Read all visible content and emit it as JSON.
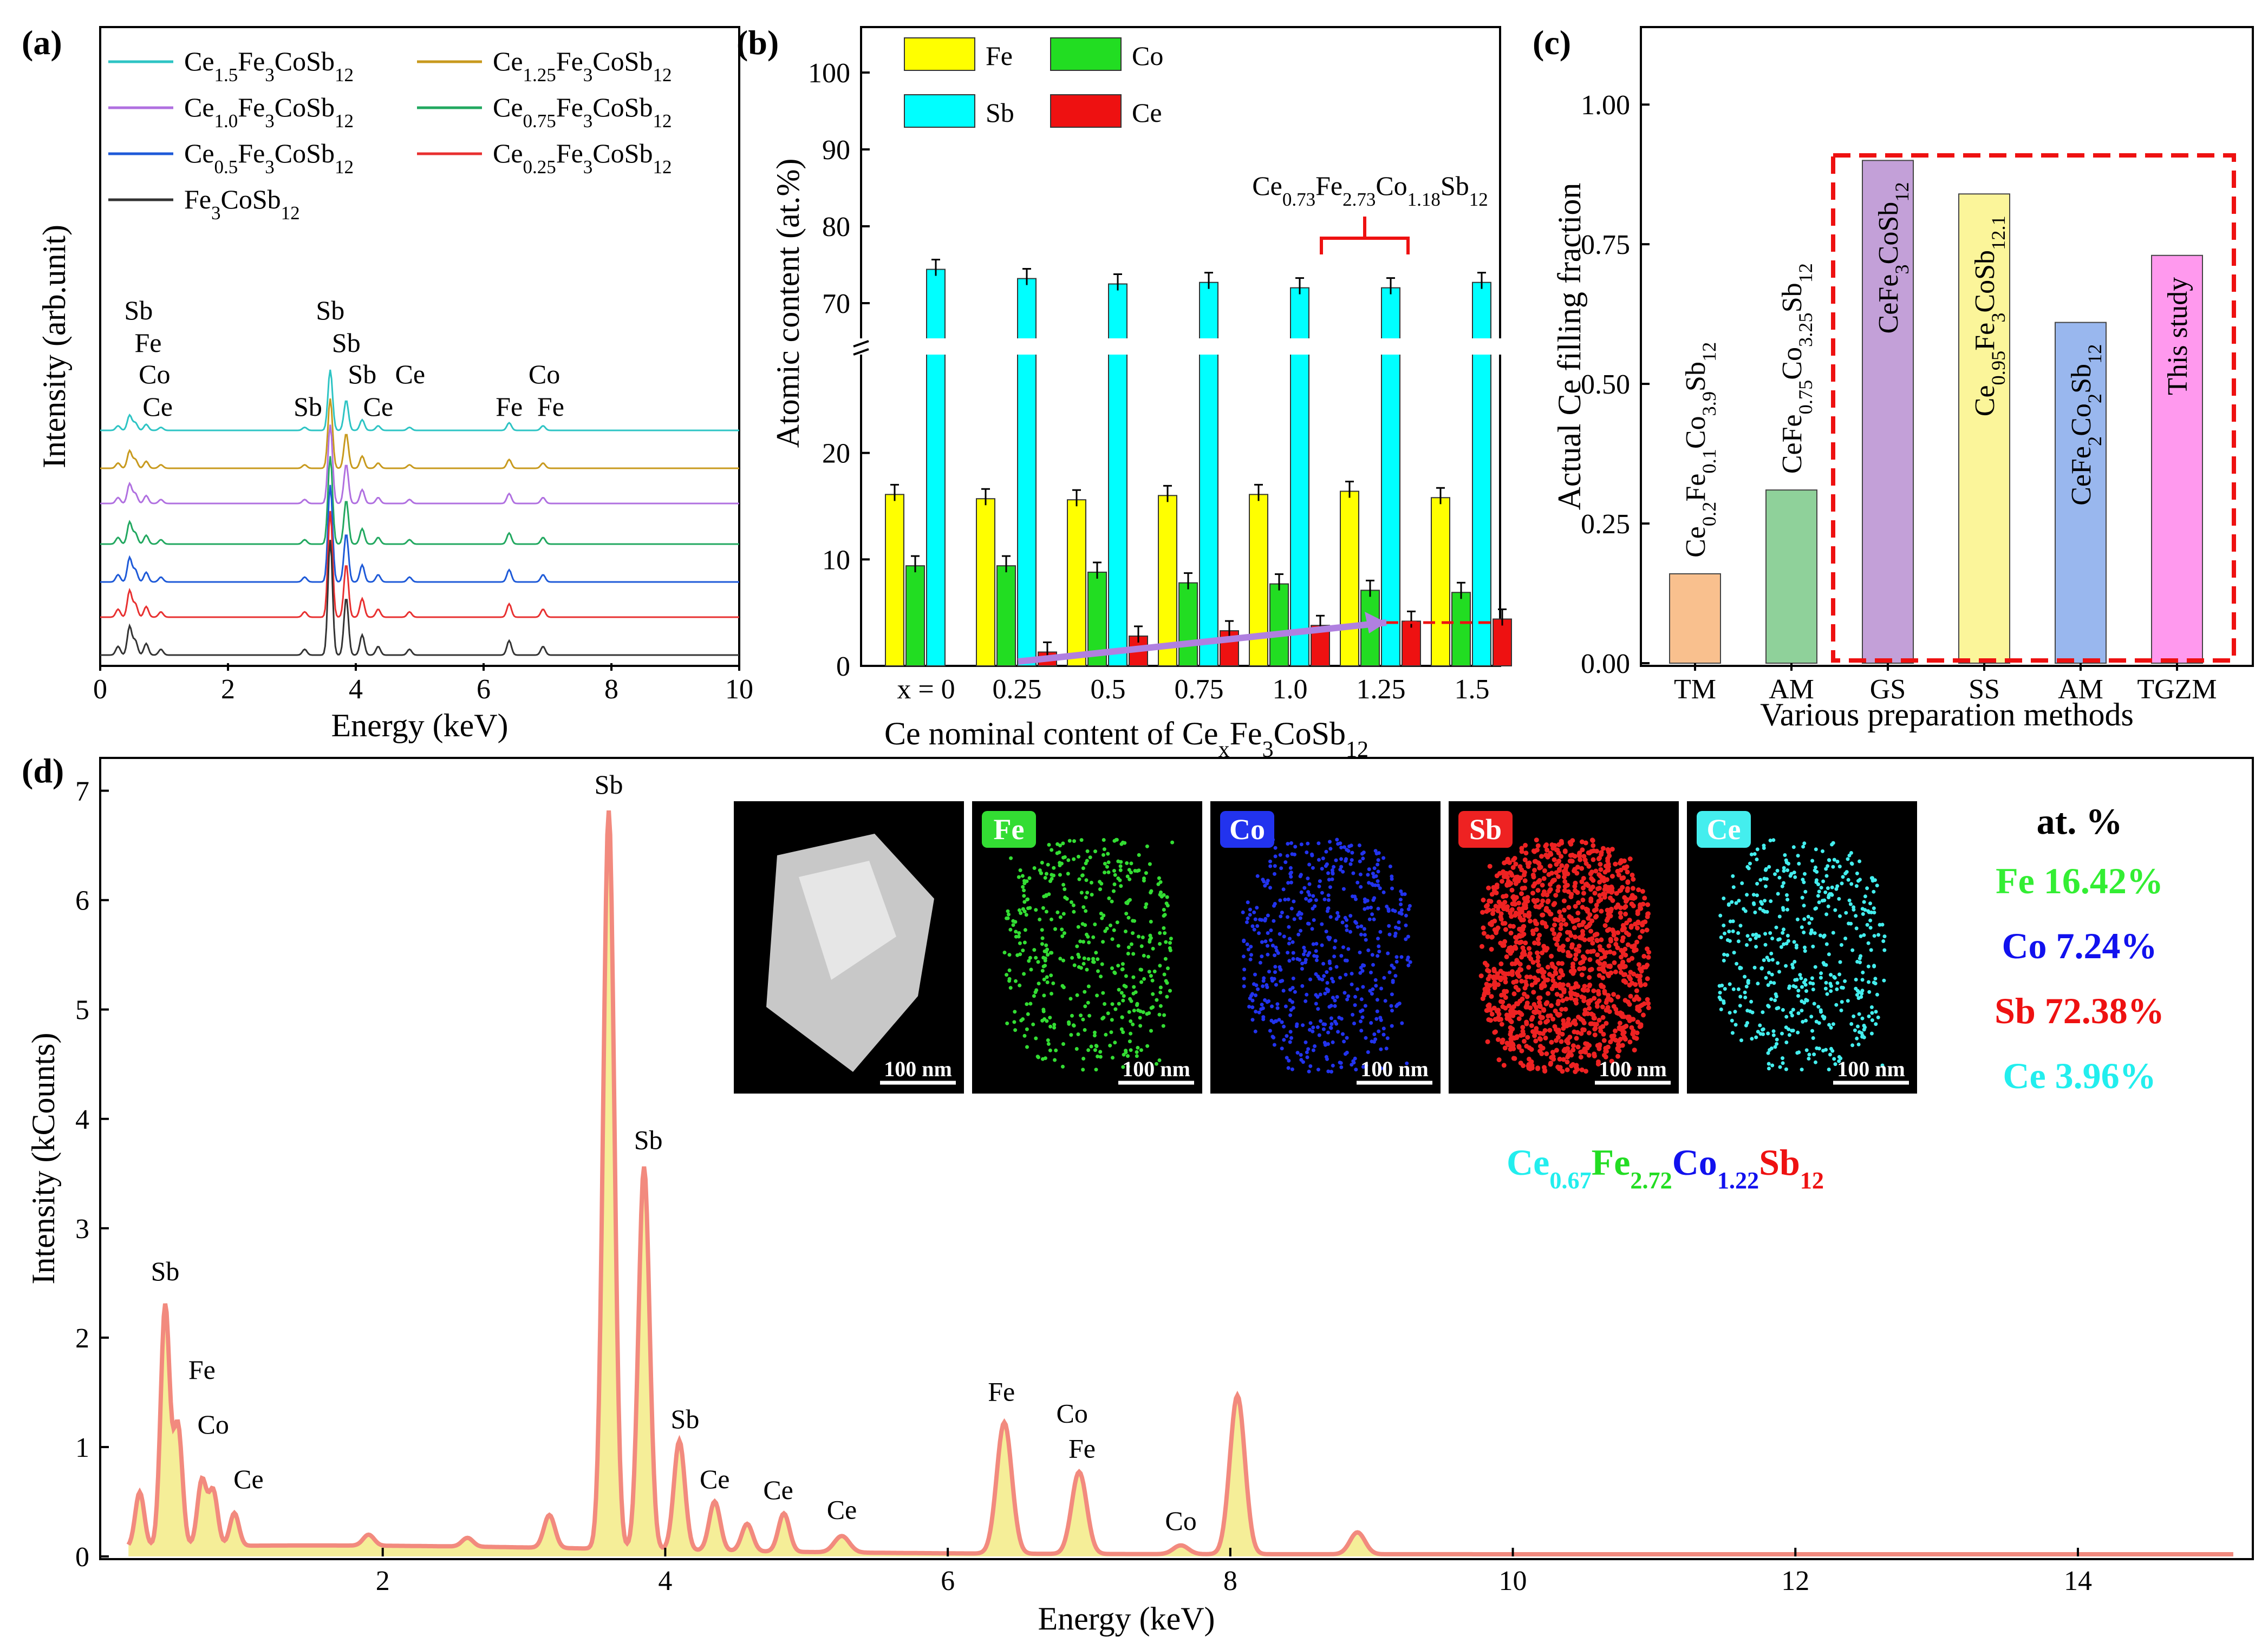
{
  "panels": {
    "a": "(a)",
    "b": "(b)",
    "c": "(c)",
    "d": "(d)"
  },
  "colors": {
    "teal": "#2ec4c4",
    "gold": "#c89a1e",
    "violet": "#b070e0",
    "green": "#22a860",
    "blue": "#1e5ad8",
    "red": "#e83030",
    "black": "#333333",
    "fe_bar": "#ffff00",
    "co_bar": "#22dd22",
    "sb_bar": "#00ffff",
    "ce_bar": "#ee1111",
    "tm": "#f9c08e",
    "am1": "#8fd19a",
    "gs": "#c3a0d8",
    "ss": "#fbf59a",
    "am2": "#99b7ee",
    "tgzm": "#ff99ee",
    "spectrum": "#f28a7e",
    "fill": "#f5ee98"
  },
  "chart_data": [
    {
      "id": "a",
      "type": "line",
      "xlabel": "Energy (keV)",
      "ylabel": "Intensity (arb.unit)",
      "xlim": [
        0,
        10
      ],
      "xticks": [
        "0",
        "2",
        "4",
        "6",
        "8",
        "10"
      ],
      "legend": [
        {
          "base": "Ce",
          "sub1": "1.5",
          "mid": "Fe",
          "sub2": "3",
          "mid2": "CoSb",
          "sub3": "12",
          "color": "teal"
        },
        {
          "base": "Ce",
          "sub1": "1.25",
          "mid": "Fe",
          "sub2": "3",
          "mid2": "CoSb",
          "sub3": "12",
          "color": "gold"
        },
        {
          "base": "Ce",
          "sub1": "1.0",
          "mid": "Fe",
          "sub2": "3",
          "mid2": "CoSb",
          "sub3": "12",
          "color": "violet"
        },
        {
          "base": "Ce",
          "sub1": "0.75",
          "mid": "Fe",
          "sub2": "3",
          "mid2": "CoSb",
          "sub3": "12",
          "color": "green"
        },
        {
          "base": "Ce",
          "sub1": "0.5",
          "mid": "Fe",
          "sub2": "3",
          "mid2": "CoSb",
          "sub3": "12",
          "color": "blue"
        },
        {
          "base": "Ce",
          "sub1": "0.25",
          "mid": "Fe",
          "sub2": "3",
          "mid2": "CoSb",
          "sub3": "12",
          "color": "red"
        },
        {
          "base": "",
          "sub1": "",
          "mid": "Fe",
          "sub2": "3",
          "mid2": "CoSb",
          "sub3": "12",
          "color": "black"
        }
      ],
      "peaks": [
        {
          "text": "Sb",
          "x": 0.6,
          "row": 0
        },
        {
          "text": "Fe",
          "x": 0.75,
          "row": 1
        },
        {
          "text": "Co",
          "x": 0.85,
          "row": 2
        },
        {
          "text": "Ce",
          "x": 0.9,
          "row": 3
        },
        {
          "text": "Sb",
          "x": 3.6,
          "row": 0
        },
        {
          "text": "Sb",
          "x": 3.85,
          "row": 1
        },
        {
          "text": "Sb",
          "x": 3.25,
          "row": 3
        },
        {
          "text": "Sb",
          "x": 4.1,
          "row": 2
        },
        {
          "text": "Ce",
          "x": 4.35,
          "row": 3
        },
        {
          "text": "Ce",
          "x": 4.85,
          "row": 2
        },
        {
          "text": "Fe",
          "x": 6.4,
          "row": 3
        },
        {
          "text": "Co",
          "x": 6.95,
          "row": 2
        },
        {
          "text": "Fe",
          "x": 7.05,
          "row": 3
        }
      ]
    },
    {
      "id": "b",
      "type": "bar",
      "xlabel_parts": [
        "Ce nominal content of Ce",
        "x",
        "Fe",
        "3",
        "CoSb",
        "12"
      ],
      "ylabel": "Atomic content (at.%)",
      "categories": [
        "x = 0",
        "0.25",
        "0.5",
        "0.75",
        "1.0",
        "1.25",
        "1.5"
      ],
      "yticks_low": [
        "0",
        "10",
        "20"
      ],
      "yticks_high": [
        "70",
        "80",
        "90",
        "100"
      ],
      "series": [
        {
          "name": "Fe",
          "color": "fe_bar",
          "values": [
            16.1,
            15.7,
            15.6,
            16.0,
            16.1,
            16.4,
            15.8
          ]
        },
        {
          "name": "Co",
          "color": "co_bar",
          "values": [
            9.4,
            9.4,
            8.8,
            7.8,
            7.7,
            7.1,
            6.9
          ]
        },
        {
          "name": "Sb",
          "color": "sb_bar",
          "values": [
            74.4,
            73.2,
            72.5,
            72.7,
            72.0,
            72.0,
            72.7
          ]
        },
        {
          "name": "Ce",
          "color": "ce_bar",
          "values": [
            0,
            1.3,
            2.8,
            3.3,
            3.8,
            4.2,
            4.4
          ]
        }
      ],
      "annotation_parts": [
        "Ce",
        "0.73",
        "Fe",
        "2.73",
        "Co",
        "1.18",
        "Sb",
        "12"
      ]
    },
    {
      "id": "c",
      "type": "bar",
      "xlabel": "Various preparation methods",
      "ylabel": "Actual Ce filling fraction",
      "ylim": [
        0,
        1.1
      ],
      "yticks": [
        "0.00",
        "0.25",
        "0.50",
        "0.75",
        "1.00"
      ],
      "categories": [
        "TM",
        "AM",
        "GS",
        "SS",
        "AM",
        "TGZM"
      ],
      "values": [
        0.16,
        0.31,
        0.9,
        0.84,
        0.61,
        0.73
      ],
      "bar_colors": [
        "tm",
        "am1",
        "gs",
        "ss",
        "am2",
        "tgzm"
      ],
      "bar_labels": [
        [
          "Ce",
          "0.2",
          "Fe",
          "0.1",
          "Co",
          "3.9",
          "Sb",
          "12"
        ],
        [
          "CeFe",
          "0.75",
          "Co",
          "3.25",
          "Sb",
          "12"
        ],
        [
          "CeFe",
          "3",
          "CoSb",
          "12"
        ],
        [
          "Ce",
          "0.95",
          "Fe",
          "3",
          "CoSb",
          "12.1"
        ],
        [
          "CeFe",
          "2",
          "Co",
          "2",
          "Sb",
          "12"
        ],
        [
          "This study"
        ]
      ]
    },
    {
      "id": "d",
      "type": "line",
      "xlabel": "Energy (keV)",
      "ylabel": "Intensity (kCounts)",
      "xlim": [
        0,
        15.2
      ],
      "ylim": [
        0,
        7.3
      ],
      "xticks": [
        "2",
        "4",
        "6",
        "8",
        "10",
        "12",
        "14"
      ],
      "yticks": [
        "0",
        "1",
        "2",
        "3",
        "4",
        "5",
        "6",
        "7"
      ],
      "peaks": [
        {
          "x": 0.28,
          "y": 0.5
        },
        {
          "x": 0.46,
          "y": 2.2
        },
        {
          "x": 0.55,
          "y": 1.1
        },
        {
          "x": 0.72,
          "y": 0.6
        },
        {
          "x": 0.8,
          "y": 0.5
        },
        {
          "x": 0.95,
          "y": 0.3
        },
        {
          "x": 1.9,
          "y": 0.1
        },
        {
          "x": 2.6,
          "y": 0.08
        },
        {
          "x": 3.18,
          "y": 0.3
        },
        {
          "x": 3.6,
          "y": 6.75
        },
        {
          "x": 3.85,
          "y": 3.5
        },
        {
          "x": 4.1,
          "y": 1.0
        },
        {
          "x": 4.35,
          "y": 0.45
        },
        {
          "x": 4.58,
          "y": 0.25
        },
        {
          "x": 4.84,
          "y": 0.35
        },
        {
          "x": 5.25,
          "y": 0.15
        },
        {
          "x": 6.4,
          "y": 1.2
        },
        {
          "x": 6.93,
          "y": 0.75
        },
        {
          "x": 7.65,
          "y": 0.08
        },
        {
          "x": 8.05,
          "y": 1.45
        },
        {
          "x": 8.9,
          "y": 0.2
        }
      ],
      "labels": [
        {
          "text": "Sb",
          "x": 0.46,
          "y": 2.4
        },
        {
          "text": "Fe",
          "x": 0.72,
          "y": 1.5
        },
        {
          "text": "Co",
          "x": 0.8,
          "y": 1.0
        },
        {
          "text": "Ce",
          "x": 1.05,
          "y": 0.5
        },
        {
          "text": "Sb",
          "x": 3.6,
          "y": 6.85
        },
        {
          "text": "Sb",
          "x": 3.88,
          "y": 3.6
        },
        {
          "text": "Sb",
          "x": 4.14,
          "y": 1.05
        },
        {
          "text": "Ce",
          "x": 4.35,
          "y": 0.5
        },
        {
          "text": "Ce",
          "x": 4.8,
          "y": 0.4
        },
        {
          "text": "Ce",
          "x": 5.25,
          "y": 0.22
        },
        {
          "text": "Fe",
          "x": 6.38,
          "y": 1.3
        },
        {
          "text": "Co",
          "x": 6.88,
          "y": 1.1
        },
        {
          "text": "Fe",
          "x": 6.95,
          "y": 0.78
        },
        {
          "text": "Co",
          "x": 7.65,
          "y": 0.12
        }
      ],
      "maps": [
        "",
        "Fe",
        "Co",
        "Sb",
        "Ce"
      ],
      "scale": "100 nm",
      "at_title": "at. %",
      "at_values": [
        {
          "text": "Fe 16.42%",
          "color": "#33ee33"
        },
        {
          "text": "Co 7.24%",
          "color": "#1111ee"
        },
        {
          "text": "Sb 72.38%",
          "color": "#ee1111"
        },
        {
          "text": "Ce 3.96%",
          "color": "#22eeee"
        }
      ],
      "formula": [
        {
          "t": "Ce",
          "s": "0.67",
          "c": "#22eeee"
        },
        {
          "t": "Fe",
          "s": "2.72",
          "c": "#22dd22"
        },
        {
          "t": "Co",
          "s": "1.22",
          "c": "#1111ee"
        },
        {
          "t": "Sb",
          "s": "12",
          "c": "#ee1111"
        }
      ]
    }
  ]
}
